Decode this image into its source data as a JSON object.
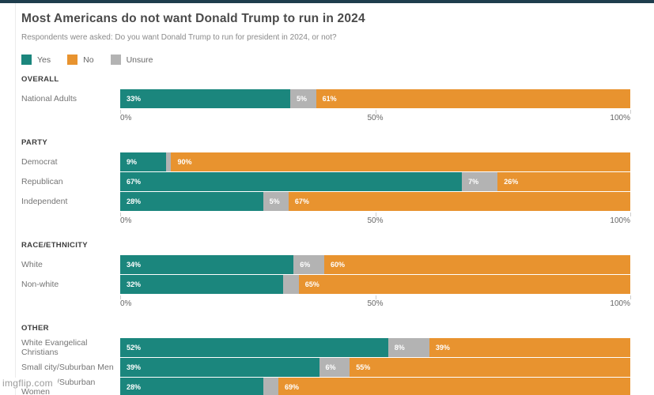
{
  "page": {
    "title": "Most Americans do not want Donald Trump to run in 2024",
    "subtitle": "Respondents were asked: Do you want Donald Trump to run for president in 2024, or not?",
    "watermark": "imgflip.com"
  },
  "colors": {
    "yes": "#1b867d",
    "no": "#e8932f",
    "unsure": "#b3b3b3",
    "topbar": "#1e3d4d"
  },
  "legend": [
    {
      "key": "yes",
      "label": "Yes"
    },
    {
      "key": "no",
      "label": "No"
    },
    {
      "key": "unsure",
      "label": "Unsure"
    }
  ],
  "axis": {
    "tick_labels": [
      "0%",
      "50%",
      "100%"
    ],
    "tick_positions": [
      0,
      50,
      100
    ]
  },
  "chart_data": {
    "type": "bar",
    "orientation": "horizontal-stacked",
    "xlim": [
      0,
      100
    ],
    "series_order": [
      "yes",
      "unsure",
      "no"
    ],
    "series_names": {
      "yes": "Yes",
      "unsure": "Unsure",
      "no": "No"
    },
    "groups": [
      {
        "label": "OVERALL",
        "rows": [
          {
            "label": "National Adults",
            "values": {
              "yes": 33,
              "unsure": 5,
              "no": 61
            },
            "labels": {
              "yes": "33%",
              "unsure": "5%",
              "no": "61%"
            }
          }
        ]
      },
      {
        "label": "PARTY",
        "rows": [
          {
            "label": "Democrat",
            "values": {
              "yes": 9,
              "unsure": 1,
              "no": 90
            },
            "labels": {
              "yes": "9%",
              "unsure": "",
              "no": "90%"
            }
          },
          {
            "label": "Republican",
            "values": {
              "yes": 67,
              "unsure": 7,
              "no": 26
            },
            "labels": {
              "yes": "67%",
              "unsure": "7%",
              "no": "26%"
            }
          },
          {
            "label": "Independent",
            "values": {
              "yes": 28,
              "unsure": 5,
              "no": 67
            },
            "labels": {
              "yes": "28%",
              "unsure": "5%",
              "no": "67%"
            }
          }
        ]
      },
      {
        "label": "RACE/ETHNICITY",
        "rows": [
          {
            "label": "White",
            "values": {
              "yes": 34,
              "unsure": 6,
              "no": 60
            },
            "labels": {
              "yes": "34%",
              "unsure": "6%",
              "no": "60%"
            }
          },
          {
            "label": "Non-white",
            "values": {
              "yes": 32,
              "unsure": 3,
              "no": 65
            },
            "labels": {
              "yes": "32%",
              "unsure": "",
              "no": "65%"
            }
          }
        ]
      },
      {
        "label": "OTHER",
        "rows": [
          {
            "label": "White Evangelical Christians",
            "values": {
              "yes": 52,
              "unsure": 8,
              "no": 39
            },
            "labels": {
              "yes": "52%",
              "unsure": "8%",
              "no": "39%"
            }
          },
          {
            "label": "Small city/Suburban Men",
            "values": {
              "yes": 39,
              "unsure": 6,
              "no": 55
            },
            "labels": {
              "yes": "39%",
              "unsure": "6%",
              "no": "55%"
            }
          },
          {
            "label": "Small city/Suburban Women",
            "values": {
              "yes": 28,
              "unsure": 3,
              "no": 69
            },
            "labels": {
              "yes": "28%",
              "unsure": "",
              "no": "69%"
            }
          }
        ]
      }
    ]
  }
}
